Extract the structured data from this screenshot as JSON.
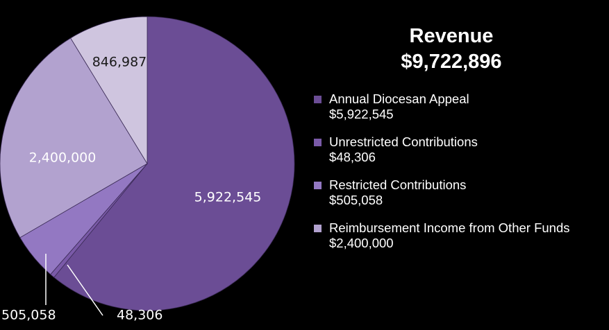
{
  "chart_data": {
    "type": "pie",
    "title": "Revenue",
    "subtitle": "$9,722,896",
    "categories": [
      "Annual Diocesan Appeal",
      "Unrestricted Contributions",
      "Restricted Contributions",
      "Reimbursement Income from Other Funds",
      null
    ],
    "values": [
      5922545,
      48306,
      505058,
      2400000,
      846987
    ],
    "value_labels": [
      "5,922,545",
      "48,306",
      "505,058",
      "2,400,000",
      "846,987"
    ],
    "legend_value_labels": [
      "$5,922,545",
      "$48,306",
      "$505,058",
      "$2,400,000",
      null
    ],
    "colors": [
      "#6b4d95",
      "#7a5aa8",
      "#9378c2",
      "#b2a2cf",
      "#cfc5df"
    ],
    "label_colors": [
      "#ffffff",
      "#ffffff",
      "#ffffff",
      "#ffffff",
      "#1a1a1a"
    ]
  }
}
